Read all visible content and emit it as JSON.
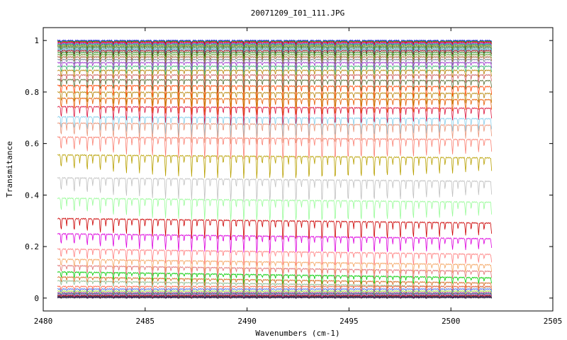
{
  "chart_data": {
    "type": "line",
    "title": "20071209_I01_111.JPG",
    "xlabel": "Wavenumbers (cm-1)",
    "ylabel": "Transmitance",
    "xlim": [
      2480,
      2505
    ],
    "ylim": [
      -0.05,
      1.05
    ],
    "x_ticks": [
      2480,
      2485,
      2490,
      2495,
      2500,
      2505
    ],
    "x_tick_labels": [
      "2480",
      "2485",
      "2490",
      "2495",
      "2500",
      "2505"
    ],
    "y_ticks": [
      0,
      0.2,
      0.4,
      0.6,
      0.8,
      1
    ],
    "y_tick_labels": [
      "0",
      "0.2",
      "0.4",
      "0.6",
      "0.8",
      "1"
    ],
    "grid": false,
    "legend": "none",
    "x_range": [
      2480.7,
      2502.0
    ],
    "absorption_line_spacing_cm-1": 0.64,
    "series_baseline_transmittance": [
      1.0,
      0.997,
      0.994,
      0.99,
      0.986,
      0.982,
      0.977,
      0.972,
      0.966,
      0.96,
      0.953,
      0.945,
      0.936,
      0.926,
      0.914,
      0.9,
      0.884,
      0.866,
      0.846,
      0.823,
      0.797,
      0.773,
      0.74,
      0.7,
      0.675,
      0.62,
      0.55,
      0.46,
      0.38,
      0.3,
      0.24,
      0.18,
      0.14,
      0.115,
      0.09,
      0.07,
      0.055,
      0.045,
      0.035,
      0.027,
      0.02,
      0.016,
      0.012,
      0.009,
      0.007,
      0.005,
      0.003,
      0.002
    ],
    "series_colors": [
      "#0000ff",
      "#00aa00",
      "#ff0000",
      "#aa00aa",
      "#00aaaa",
      "#808000",
      "#556b2f",
      "#2e8b57",
      "#4682b4",
      "#8b0000",
      "#228b22",
      "#6b8e23",
      "#a0522d",
      "#708090",
      "#9932cc",
      "#3cb371",
      "#b8860b",
      "#cd5c5c",
      "#556b2f",
      "#ff4500",
      "#b8860b",
      "#e65c00",
      "#dc143c",
      "#87ceeb",
      "#e9967a",
      "#fa8072",
      "#b8a000",
      "#c0c0c0",
      "#98fb98",
      "#cc0000",
      "#dd00dd",
      "#ff8080",
      "#f4a460",
      "#e07070",
      "#00cc00",
      "#d2691e",
      "#8fbc8f",
      "#ff6347",
      "#4169e1",
      "#9acd32",
      "#800080",
      "#20b2aa",
      "#ff1493",
      "#b22222",
      "#006400",
      "#8b008b",
      "#000080",
      "#404040"
    ]
  }
}
